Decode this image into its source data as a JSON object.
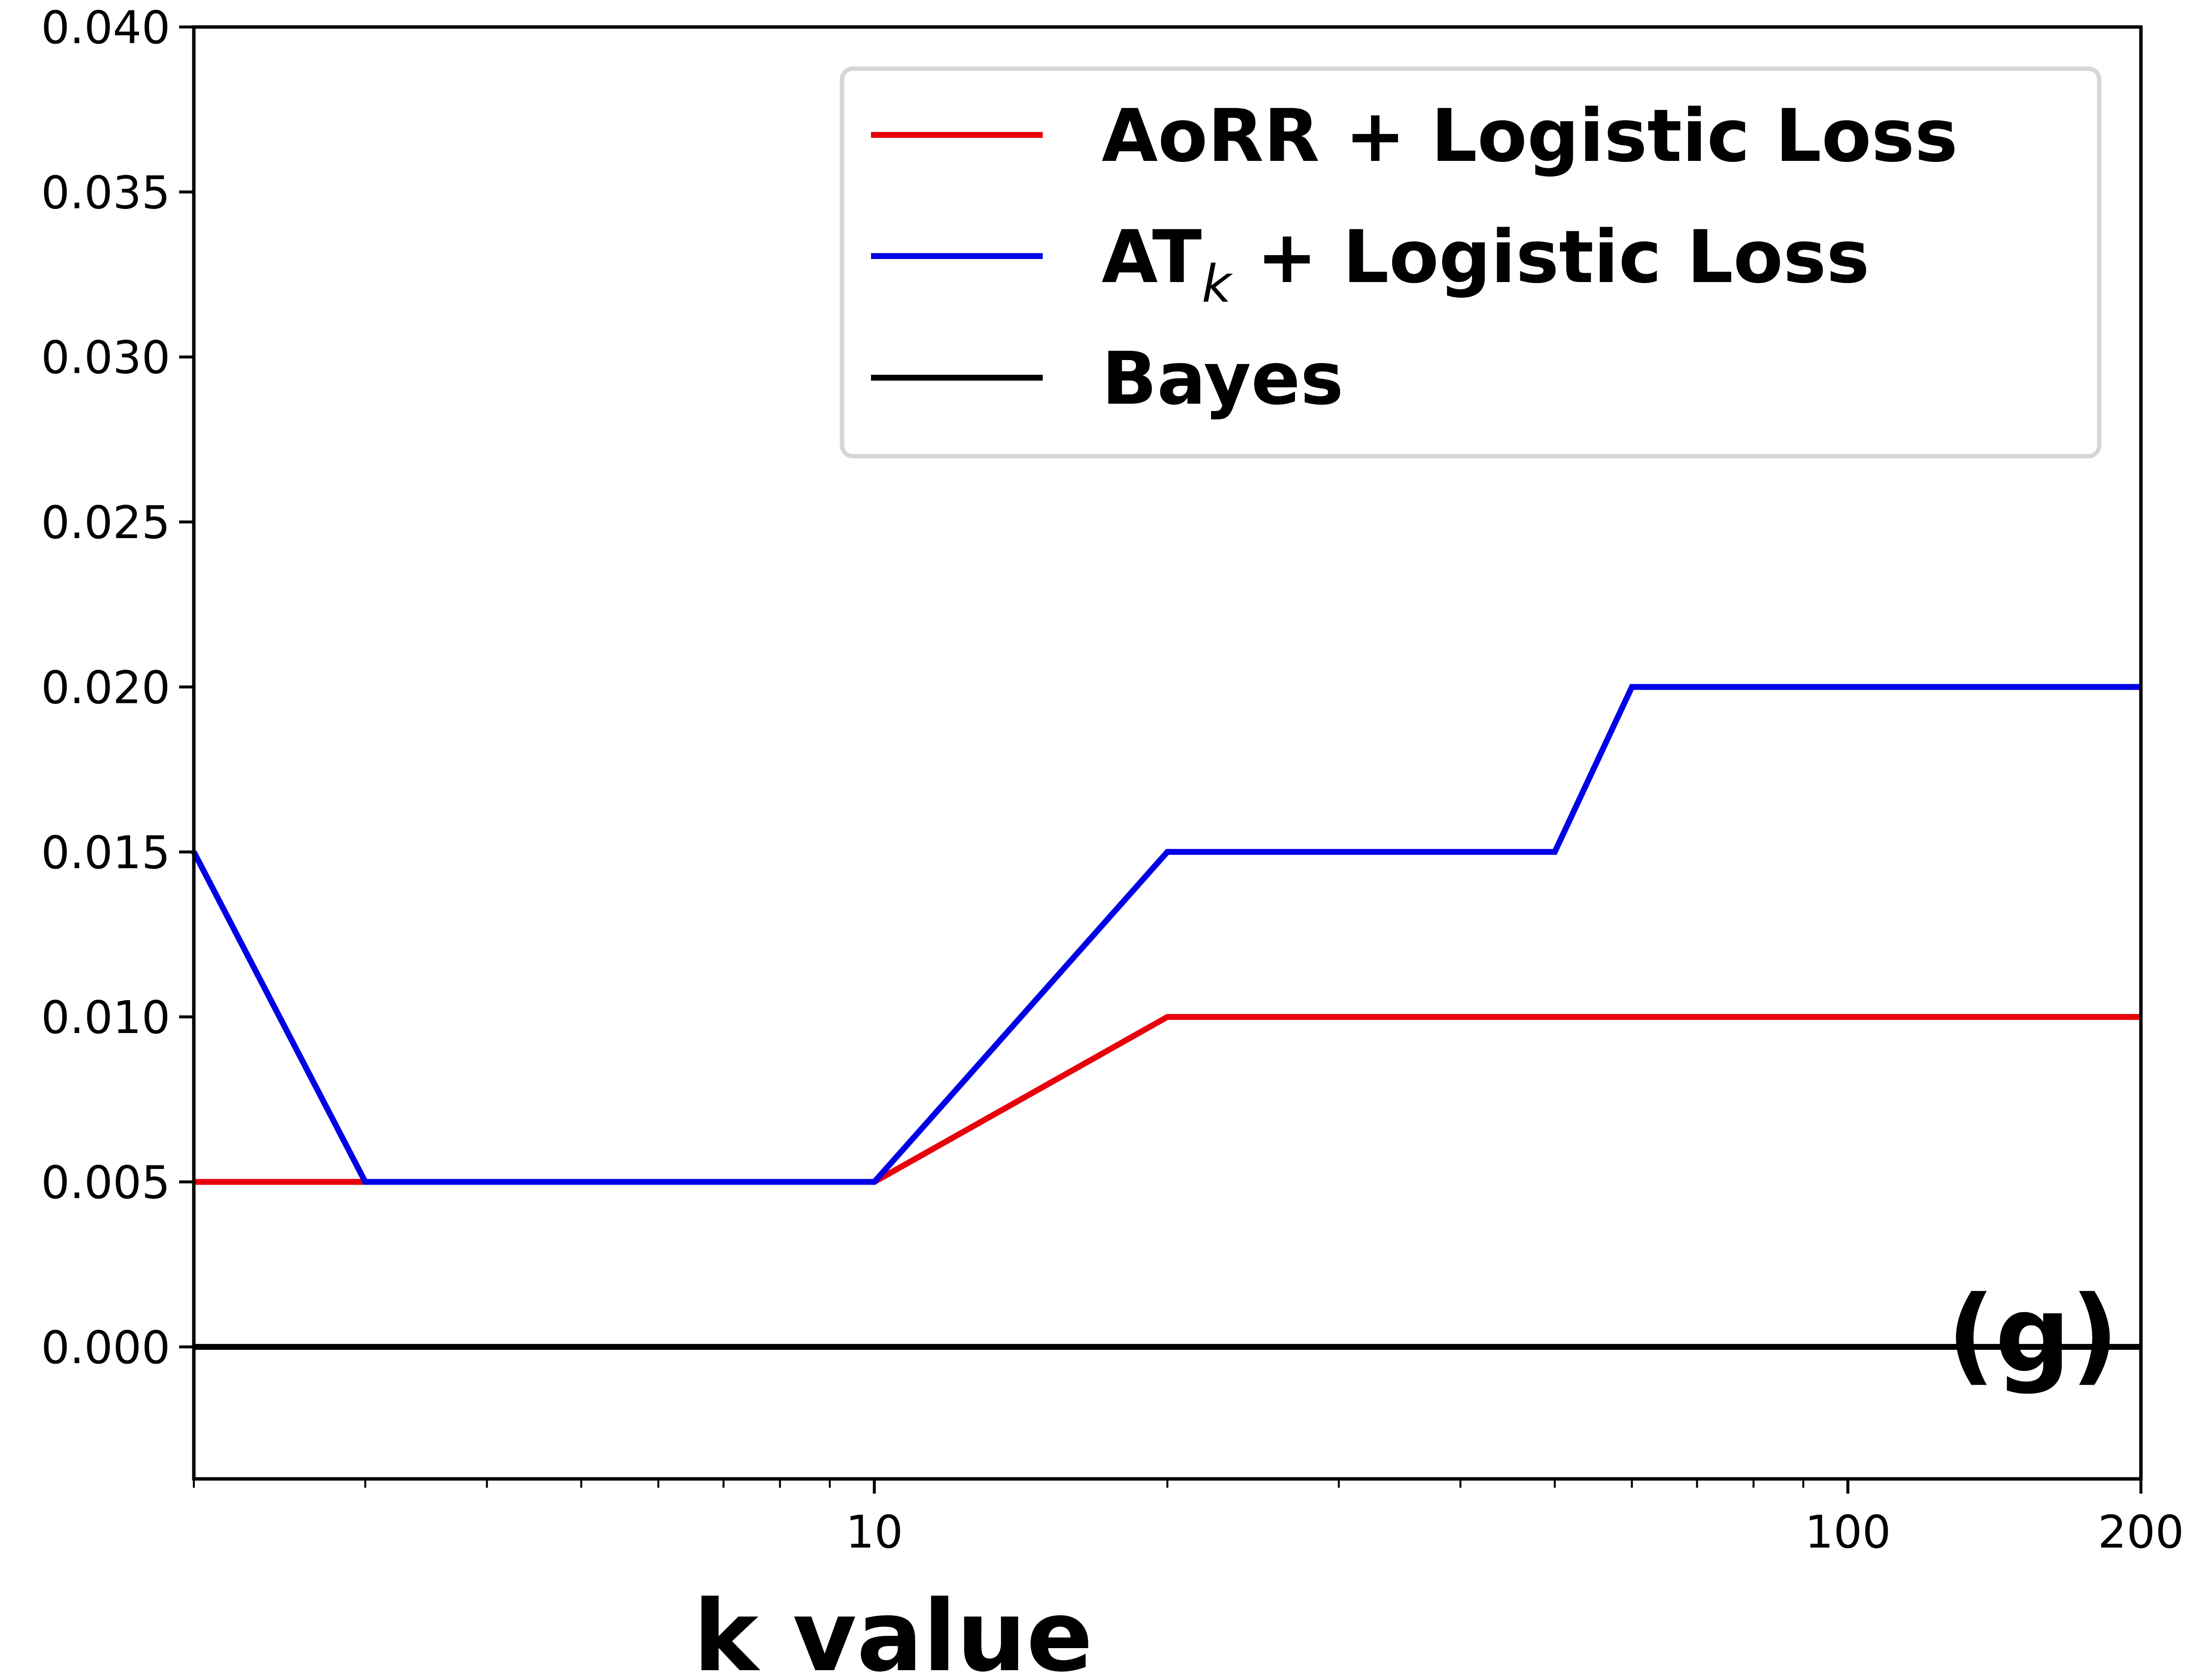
{
  "chart_data": {
    "type": "line",
    "title": "",
    "xlabel": "k value",
    "ylabel": "",
    "xscale": "log",
    "xlim": [
      2,
      200
    ],
    "ylim": [
      -0.004,
      0.04
    ],
    "grid": false,
    "legend_position": "top-right",
    "panel_label": "(g)",
    "x_ticks": [
      {
        "value": 10,
        "label": "10"
      },
      {
        "value": 100,
        "label": "100"
      },
      {
        "value": 200,
        "label": "200"
      }
    ],
    "x_minor_ticks": [
      2,
      3,
      4,
      5,
      6,
      7,
      8,
      9,
      20,
      30,
      40,
      50,
      60,
      70,
      80,
      90
    ],
    "y_ticks": [
      {
        "value": 0.0,
        "label": "0.000"
      },
      {
        "value": 0.005,
        "label": "0.005"
      },
      {
        "value": 0.01,
        "label": "0.010"
      },
      {
        "value": 0.015,
        "label": "0.015"
      },
      {
        "value": 0.02,
        "label": "0.020"
      },
      {
        "value": 0.025,
        "label": "0.025"
      },
      {
        "value": 0.03,
        "label": "0.030"
      },
      {
        "value": 0.035,
        "label": "0.035"
      },
      {
        "value": 0.04,
        "label": "0.040"
      }
    ],
    "series": [
      {
        "name": "AoRR + Logistic Loss",
        "color": "#e8000b",
        "x": [
          2,
          3,
          10,
          20,
          200
        ],
        "y": [
          0.005,
          0.005,
          0.005,
          0.01,
          0.01
        ]
      },
      {
        "name": "AT",
        "name_subscript": "k",
        "name_suffix": " + Logistic Loss",
        "color": "#0000e6",
        "x": [
          2,
          3,
          10,
          20,
          50,
          60,
          200
        ],
        "y": [
          0.015,
          0.005,
          0.005,
          0.015,
          0.015,
          0.02,
          0.02
        ]
      },
      {
        "name": "Bayes",
        "color": "#000000",
        "x": [
          2,
          200
        ],
        "y": [
          0.0,
          0.0
        ]
      }
    ]
  }
}
